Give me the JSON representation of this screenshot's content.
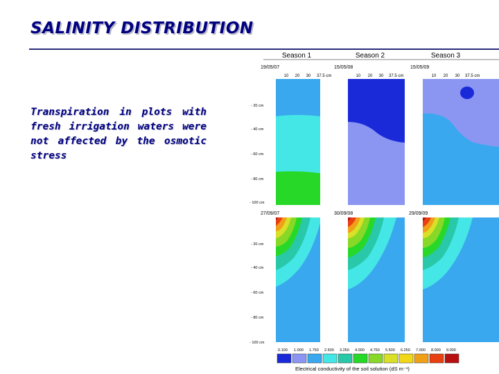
{
  "slide": {
    "title": "SALINITY DISTRIBUTION",
    "text": "Transpiration in plots with fresh irrigation waters were not affected by the osmotic stress"
  },
  "figure": {
    "seasons": [
      "Season 1",
      "Season 2",
      "Season 3"
    ],
    "dates_top": [
      "19/05/07",
      "15/05/08",
      "15/05/09"
    ],
    "dates_bottom": [
      "27/09/07",
      "30/09/08",
      "29/09/09"
    ],
    "x_ticks": [
      "10",
      "20",
      "30",
      "37.5 cm"
    ],
    "depth_ticks": [
      "- 20 cm",
      "- 40 cm",
      "- 60 cm",
      "- 80 cm",
      "- 100 cm"
    ],
    "scale_values": [
      "0.100",
      "1.000",
      "1.750",
      "2.500",
      "3.250",
      "4.000",
      "4.750",
      "5.500",
      "6.250",
      "7.000",
      "8.000",
      "9.000"
    ],
    "scale_colors": [
      "#1a2ad8",
      "#8a96f2",
      "#3aa8ee",
      "#44e6e6",
      "#28c8a8",
      "#28d828",
      "#88d828",
      "#d8e028",
      "#f0d818",
      "#f0a018",
      "#e84010",
      "#b81010"
    ],
    "scale_label": "Electrical conductivity of the soil solution (dS m⁻¹)"
  }
}
